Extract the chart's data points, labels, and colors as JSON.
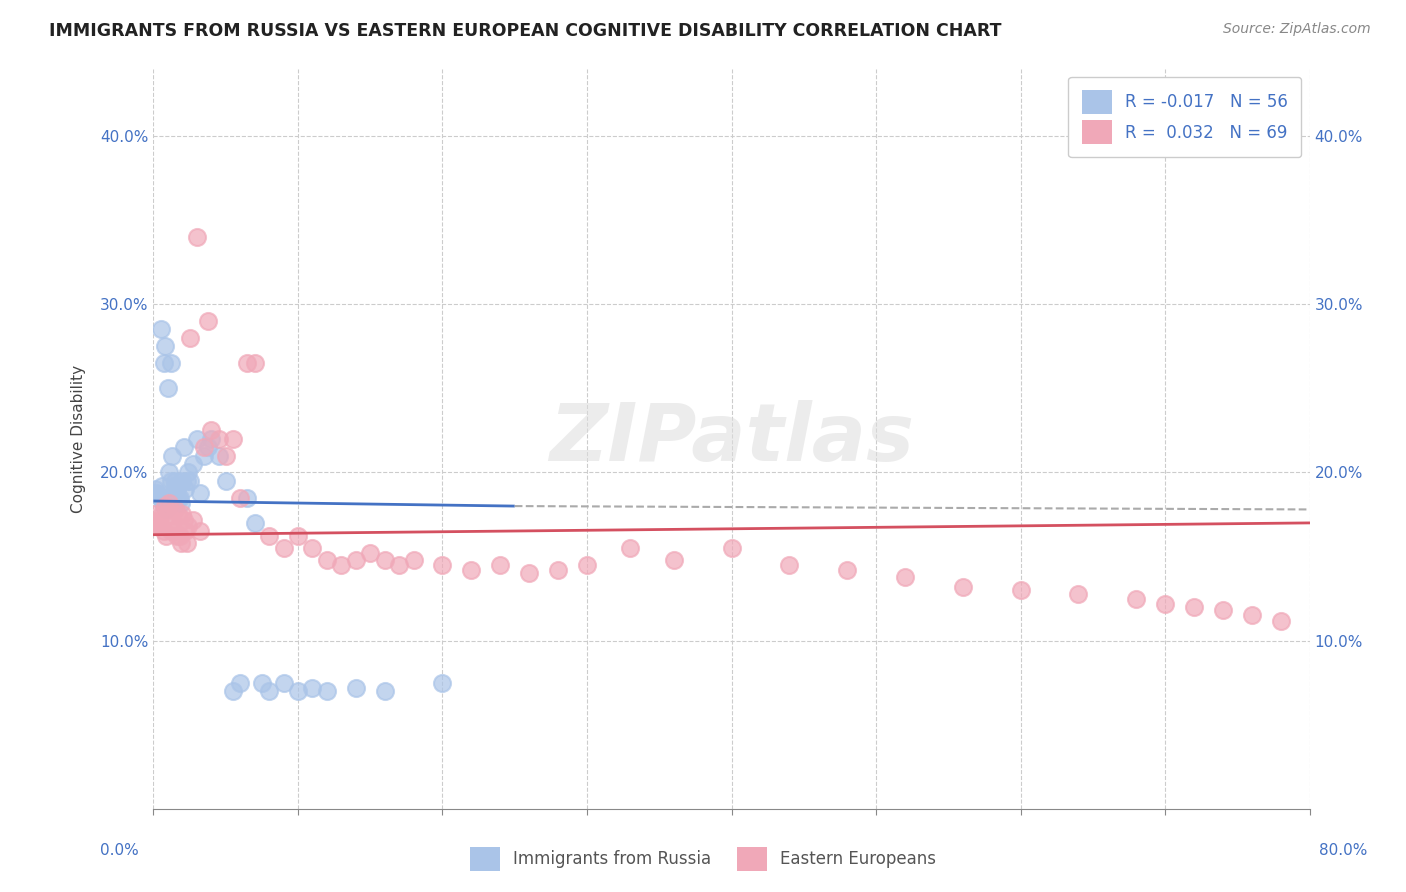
{
  "title": "IMMIGRANTS FROM RUSSIA VS EASTERN EUROPEAN COGNITIVE DISABILITY CORRELATION CHART",
  "source": "Source: ZipAtlas.com",
  "ylabel": "Cognitive Disability",
  "yticks": [
    0.1,
    0.2,
    0.3,
    0.4
  ],
  "ytick_labels": [
    "10.0%",
    "20.0%",
    "30.0%",
    "40.0%"
  ],
  "xmin": 0.0,
  "xmax": 0.8,
  "ymin": 0.0,
  "ymax": 0.44,
  "legend_blue_label": "Immigrants from Russia",
  "legend_pink_label": "Eastern Europeans",
  "R_blue": -0.017,
  "N_blue": 56,
  "R_pink": 0.032,
  "N_pink": 69,
  "blue_color": "#aac4e8",
  "pink_color": "#f0a8b8",
  "blue_line_color": "#4472c4",
  "pink_line_color": "#d45060",
  "blue_scatter_x": [
    0.001,
    0.002,
    0.003,
    0.004,
    0.005,
    0.005,
    0.006,
    0.006,
    0.007,
    0.007,
    0.008,
    0.008,
    0.009,
    0.009,
    0.01,
    0.01,
    0.011,
    0.011,
    0.012,
    0.012,
    0.013,
    0.013,
    0.014,
    0.015,
    0.015,
    0.016,
    0.017,
    0.018,
    0.019,
    0.02,
    0.021,
    0.022,
    0.023,
    0.024,
    0.025,
    0.027,
    0.03,
    0.032,
    0.035,
    0.038,
    0.04,
    0.045,
    0.05,
    0.055,
    0.06,
    0.065,
    0.07,
    0.075,
    0.08,
    0.09,
    0.1,
    0.11,
    0.12,
    0.14,
    0.16,
    0.2
  ],
  "blue_scatter_y": [
    0.19,
    0.188,
    0.187,
    0.186,
    0.285,
    0.185,
    0.192,
    0.183,
    0.265,
    0.18,
    0.275,
    0.185,
    0.178,
    0.183,
    0.25,
    0.182,
    0.2,
    0.18,
    0.195,
    0.265,
    0.21,
    0.183,
    0.188,
    0.195,
    0.192,
    0.19,
    0.185,
    0.185,
    0.182,
    0.195,
    0.215,
    0.19,
    0.195,
    0.2,
    0.195,
    0.205,
    0.22,
    0.188,
    0.21,
    0.215,
    0.22,
    0.21,
    0.195,
    0.07,
    0.075,
    0.185,
    0.17,
    0.075,
    0.07,
    0.075,
    0.07,
    0.072,
    0.07,
    0.072,
    0.07,
    0.075
  ],
  "pink_scatter_x": [
    0.001,
    0.002,
    0.003,
    0.004,
    0.005,
    0.006,
    0.007,
    0.008,
    0.009,
    0.01,
    0.011,
    0.012,
    0.013,
    0.014,
    0.015,
    0.016,
    0.017,
    0.018,
    0.019,
    0.02,
    0.021,
    0.022,
    0.023,
    0.024,
    0.025,
    0.027,
    0.03,
    0.032,
    0.035,
    0.038,
    0.04,
    0.045,
    0.05,
    0.055,
    0.06,
    0.065,
    0.07,
    0.08,
    0.09,
    0.1,
    0.11,
    0.12,
    0.13,
    0.14,
    0.15,
    0.16,
    0.17,
    0.18,
    0.2,
    0.22,
    0.24,
    0.26,
    0.28,
    0.3,
    0.33,
    0.36,
    0.4,
    0.44,
    0.48,
    0.52,
    0.56,
    0.6,
    0.64,
    0.68,
    0.7,
    0.72,
    0.74,
    0.76,
    0.78
  ],
  "pink_scatter_y": [
    0.175,
    0.17,
    0.168,
    0.172,
    0.168,
    0.175,
    0.165,
    0.18,
    0.162,
    0.175,
    0.182,
    0.165,
    0.172,
    0.165,
    0.178,
    0.162,
    0.175,
    0.162,
    0.158,
    0.175,
    0.172,
    0.165,
    0.158,
    0.168,
    0.28,
    0.172,
    0.34,
    0.165,
    0.215,
    0.29,
    0.225,
    0.22,
    0.21,
    0.22,
    0.185,
    0.265,
    0.265,
    0.162,
    0.155,
    0.162,
    0.155,
    0.148,
    0.145,
    0.148,
    0.152,
    0.148,
    0.145,
    0.148,
    0.145,
    0.142,
    0.145,
    0.14,
    0.142,
    0.145,
    0.155,
    0.148,
    0.155,
    0.145,
    0.142,
    0.138,
    0.132,
    0.13,
    0.128,
    0.125,
    0.122,
    0.12,
    0.118,
    0.115,
    0.112
  ],
  "blue_line_x_end": 0.25,
  "blue_line_start_y": 0.183,
  "blue_line_end_y": 0.18,
  "pink_line_start_y": 0.163,
  "pink_line_end_y": 0.17,
  "dashed_line_y": 0.18,
  "dashed_line_x_start": 0.25,
  "dashed_line_x_end": 0.8
}
